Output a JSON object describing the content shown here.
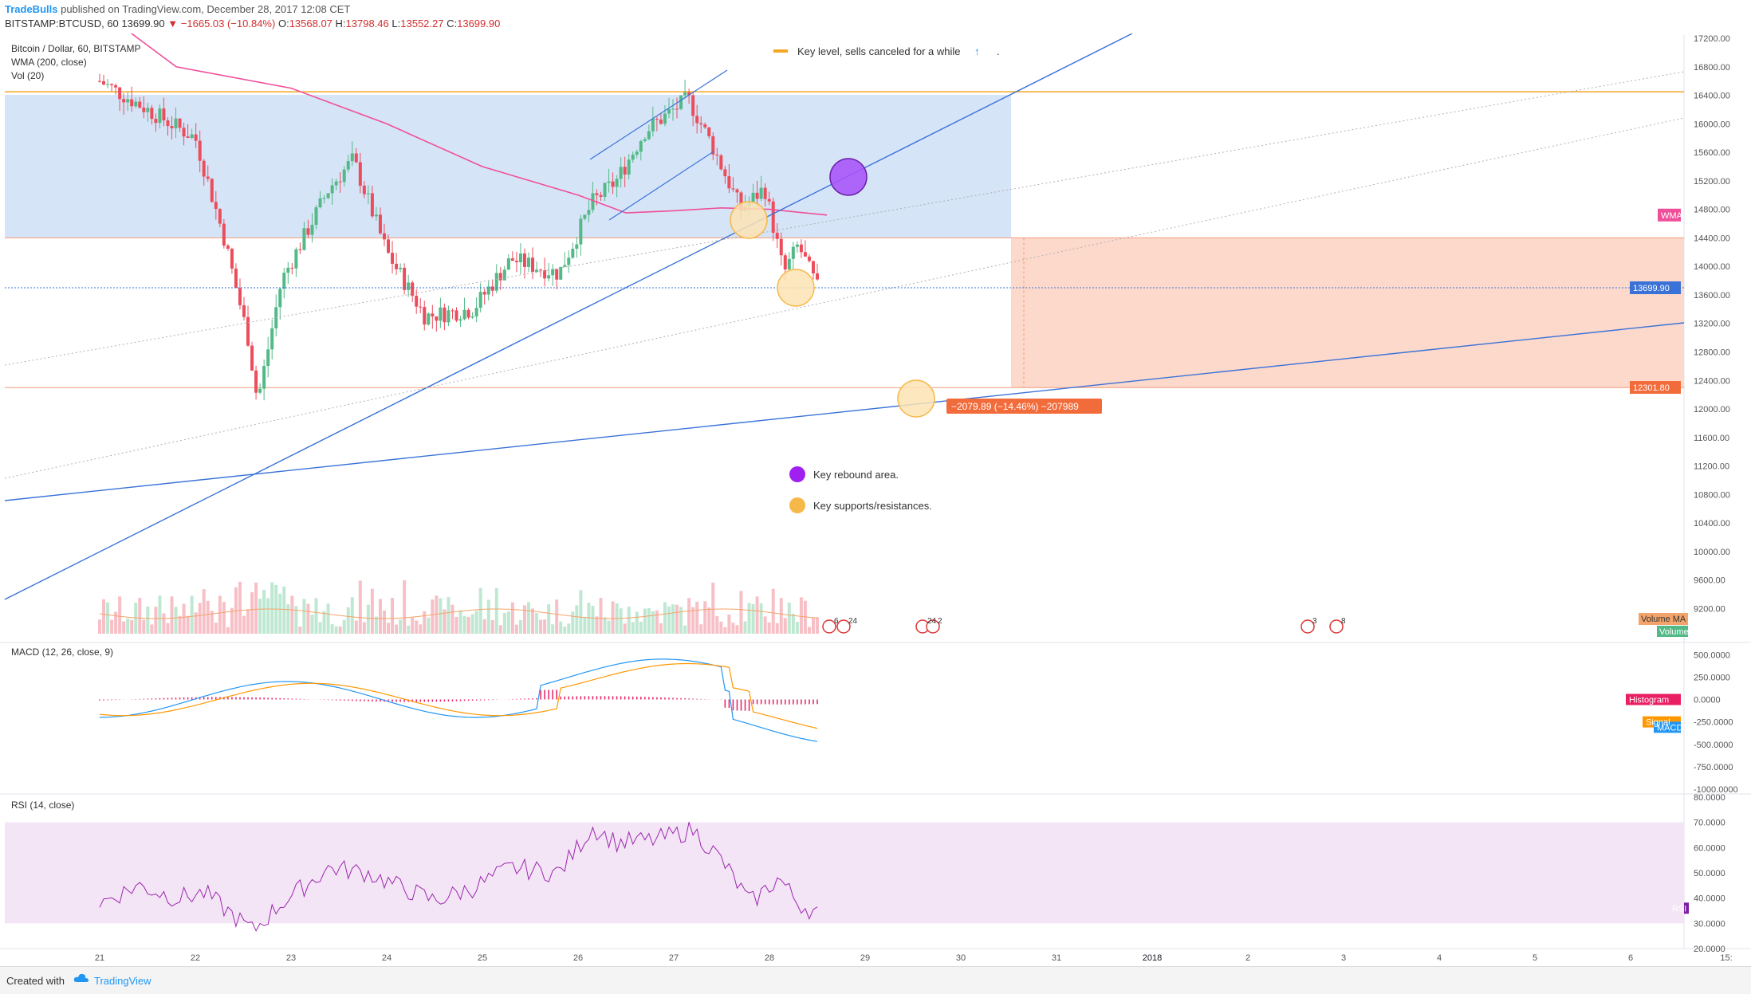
{
  "header": {
    "author": "TradeBulls",
    "published": "published on TradingView.com, December 28, 2017 12:08 CET",
    "symbol": "BITSTAMP:BTCUSD, 60",
    "last": "13699.90",
    "change": "−1665.03 (−10.84%)",
    "o_label": "O:",
    "o": "13568.07",
    "h_label": "H:",
    "h": "13798.46",
    "l_label": "L:",
    "l": "13552.27",
    "c_label": "C:",
    "c": "13699.90"
  },
  "footer": {
    "created_with": "Created with",
    "brand": "TradingView"
  },
  "colors": {
    "up": "#53b987",
    "down": "#eb4d5c",
    "axis_text": "#555555",
    "zone_blue": "#d6e4f7",
    "zone_red": "#fdd9cb",
    "key_level": "#f5a623",
    "trend": "#3a72d8",
    "wma": "#ef4f9a",
    "purple": "#9c35e6",
    "orange": "#f7b84a",
    "macd": "#2196f3",
    "signal": "#ff9800",
    "histogram": "#e91e63",
    "rsi": "#9c27b0",
    "rsi_band": "#f3e5f5"
  },
  "chart_data": [
    {
      "type": "candlestick",
      "title": "Bitcoin / Dollar, 60, BITSTAMP",
      "indicators": [
        "WMA (200, close)",
        "Vol (20)"
      ],
      "x_tick_labels": [
        "21",
        "22",
        "23",
        "24",
        "25",
        "26",
        "27",
        "28",
        "29",
        "30",
        "31",
        "2018",
        "2",
        "3",
        "4",
        "5",
        "6",
        "15:"
      ],
      "y_ticks": [
        "17200.00",
        "16800.00",
        "16400.00",
        "16000.00",
        "15600.00",
        "15200.00",
        "14800.00",
        "14400.00",
        "14000.00",
        "13600.00",
        "13200.00",
        "12800.00",
        "12400.00",
        "12000.00",
        "11600.00",
        "11200.00",
        "10800.00",
        "10400.00",
        "10000.00",
        "9600.00",
        "9200.00"
      ],
      "ylim": [
        9000,
        17200
      ],
      "last_price": 13699.9,
      "key_level": 16450,
      "zone_top": 14400,
      "zone_bottom": 12300,
      "range_label": "−2079.89 (−14.46%) −207989",
      "price_tags": [
        {
          "label": "WMA",
          "value": 14720
        },
        {
          "label": "13699.90",
          "value": 13699.9
        },
        {
          "label": "12301.80",
          "value": 12301.8
        }
      ],
      "volume_tags": [
        "Volume MA",
        "Volume"
      ],
      "event_labels": [
        "6",
        "24",
        "24",
        "2",
        "3",
        "8"
      ],
      "legend": [
        {
          "label": "Key level, sells canceled for a while",
          "marker": "line"
        },
        {
          "label": "Key rebound area.",
          "marker": "purple-dot"
        },
        {
          "label": "Key supports/resistances.",
          "marker": "orange-dot"
        }
      ],
      "legend_arrow": "↑",
      "legend_period": ".",
      "price_path": [
        {
          "x": 0,
          "y": 16600
        },
        {
          "x": 0.5,
          "y": 16200
        },
        {
          "x": 1,
          "y": 15800
        },
        {
          "x": 1.3,
          "y": 14400
        },
        {
          "x": 1.55,
          "y": 13000
        },
        {
          "x": 1.65,
          "y": 12100
        },
        {
          "x": 1.9,
          "y": 13800
        },
        {
          "x": 2.4,
          "y": 15100
        },
        {
          "x": 2.65,
          "y": 15500
        },
        {
          "x": 3.0,
          "y": 14200
        },
        {
          "x": 3.4,
          "y": 13300
        },
        {
          "x": 3.9,
          "y": 13400
        },
        {
          "x": 4.3,
          "y": 14100
        },
        {
          "x": 4.8,
          "y": 13900
        },
        {
          "x": 5.15,
          "y": 14900
        },
        {
          "x": 5.4,
          "y": 15200
        },
        {
          "x": 5.7,
          "y": 15900
        },
        {
          "x": 6.15,
          "y": 16350
        },
        {
          "x": 6.4,
          "y": 15700
        },
        {
          "x": 6.7,
          "y": 14800
        },
        {
          "x": 6.95,
          "y": 15100
        },
        {
          "x": 7.15,
          "y": 13900
        },
        {
          "x": 7.3,
          "y": 14300
        },
        {
          "x": 7.5,
          "y": 13700
        }
      ]
    },
    {
      "type": "line",
      "title": "MACD (12, 26, close, 9)",
      "series": [
        {
          "name": "Histogram"
        },
        {
          "name": "Signal"
        },
        {
          "name": "MACD"
        }
      ],
      "y_ticks": [
        "500.0000",
        "250.0000",
        "0.0000",
        "-250.0000",
        "-500.0000",
        "-750.0000",
        "-1000.0000"
      ],
      "ylim": [
        -1000,
        600
      ]
    },
    {
      "type": "line",
      "title": "RSI (14, close)",
      "series": [
        {
          "name": "RSI"
        }
      ],
      "y_ticks": [
        "80.0000",
        "70.0000",
        "60.0000",
        "50.0000",
        "40.0000",
        "30.0000",
        "20.0000"
      ],
      "ylim": [
        20,
        80
      ],
      "band": [
        30,
        70
      ],
      "approx_values": [
        {
          "x": 0,
          "y": 38
        },
        {
          "x": 0.4,
          "y": 45
        },
        {
          "x": 0.8,
          "y": 40
        },
        {
          "x": 1.1,
          "y": 42
        },
        {
          "x": 1.6,
          "y": 27
        },
        {
          "x": 1.9,
          "y": 38
        },
        {
          "x": 2.4,
          "y": 52
        },
        {
          "x": 2.8,
          "y": 50
        },
        {
          "x": 3.1,
          "y": 45
        },
        {
          "x": 3.5,
          "y": 39
        },
        {
          "x": 3.9,
          "y": 44
        },
        {
          "x": 4.3,
          "y": 52
        },
        {
          "x": 4.8,
          "y": 50
        },
        {
          "x": 5.15,
          "y": 68
        },
        {
          "x": 5.4,
          "y": 62
        },
        {
          "x": 5.8,
          "y": 63
        },
        {
          "x": 6.2,
          "y": 67
        },
        {
          "x": 6.5,
          "y": 55
        },
        {
          "x": 6.8,
          "y": 38
        },
        {
          "x": 7.1,
          "y": 48
        },
        {
          "x": 7.3,
          "y": 38
        },
        {
          "x": 7.5,
          "y": 34
        }
      ]
    }
  ]
}
